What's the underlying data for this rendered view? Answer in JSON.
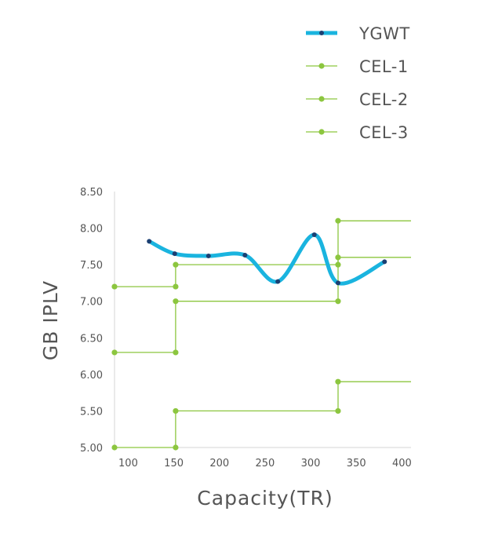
{
  "chart_data": {
    "type": "line",
    "title": "",
    "xlabel": "Capacity(TR)",
    "ylabel": "GB IPLV",
    "xlim": [
      85,
      410
    ],
    "ylim": [
      5.0,
      8.5
    ],
    "x_ticks": [
      {
        "value": 100,
        "label": "100"
      },
      {
        "value": 150,
        "label": "150"
      },
      {
        "value": 200,
        "label": "200"
      },
      {
        "value": 250,
        "label": "250"
      },
      {
        "value": 300,
        "label": "300"
      },
      {
        "value": 350,
        "label": "350"
      },
      {
        "value": 400,
        "label": "400"
      }
    ],
    "y_ticks": [
      {
        "value": 5.0,
        "label": "5.00"
      },
      {
        "value": 5.5,
        "label": "5.50"
      },
      {
        "value": 6.0,
        "label": "6.00"
      },
      {
        "value": 6.5,
        "label": "6.50"
      },
      {
        "value": 7.0,
        "label": "7.00"
      },
      {
        "value": 7.5,
        "label": "7.50"
      },
      {
        "value": 8.0,
        "label": "8.00"
      },
      {
        "value": 8.5,
        "label": "8.50"
      }
    ],
    "grid": false,
    "legend_position": "top-right",
    "series": [
      {
        "name": "YGWT",
        "color": "#1ab4df",
        "marker_color": "#1b3f72",
        "style": "smooth",
        "points": [
          [
            123,
            7.82
          ],
          [
            151,
            7.65
          ],
          [
            188,
            7.62
          ],
          [
            228,
            7.63
          ],
          [
            264,
            7.27
          ],
          [
            304,
            7.91
          ],
          [
            330,
            7.25
          ],
          [
            381,
            7.54
          ]
        ]
      },
      {
        "name": "CEL-1",
        "color": "#8cc63f",
        "style": "step",
        "points": [
          [
            85,
            5.0
          ],
          [
            152,
            5.0
          ],
          [
            152,
            5.5
          ],
          [
            330,
            5.5
          ],
          [
            330,
            5.9
          ],
          [
            410,
            5.9
          ]
        ],
        "markers": [
          [
            85,
            5.0
          ],
          [
            152,
            5.0
          ],
          [
            152,
            5.5
          ],
          [
            330,
            5.5
          ],
          [
            330,
            5.9
          ]
        ]
      },
      {
        "name": "CEL-2",
        "color": "#8cc63f",
        "style": "step",
        "points": [
          [
            85,
            6.3
          ],
          [
            152,
            6.3
          ],
          [
            152,
            7.0
          ],
          [
            330,
            7.0
          ],
          [
            330,
            7.6
          ],
          [
            410,
            7.6
          ]
        ],
        "markers": [
          [
            85,
            6.3
          ],
          [
            152,
            6.3
          ],
          [
            152,
            7.0
          ],
          [
            330,
            7.0
          ],
          [
            330,
            7.6
          ]
        ]
      },
      {
        "name": "CEL-3",
        "color": "#8cc63f",
        "style": "step",
        "points": [
          [
            85,
            7.2
          ],
          [
            152,
            7.2
          ],
          [
            152,
            7.5
          ],
          [
            330,
            7.5
          ],
          [
            330,
            8.1
          ],
          [
            410,
            8.1
          ]
        ],
        "markers": [
          [
            85,
            7.2
          ],
          [
            152,
            7.2
          ],
          [
            152,
            7.5
          ],
          [
            330,
            7.5
          ],
          [
            330,
            8.1
          ]
        ]
      }
    ]
  }
}
